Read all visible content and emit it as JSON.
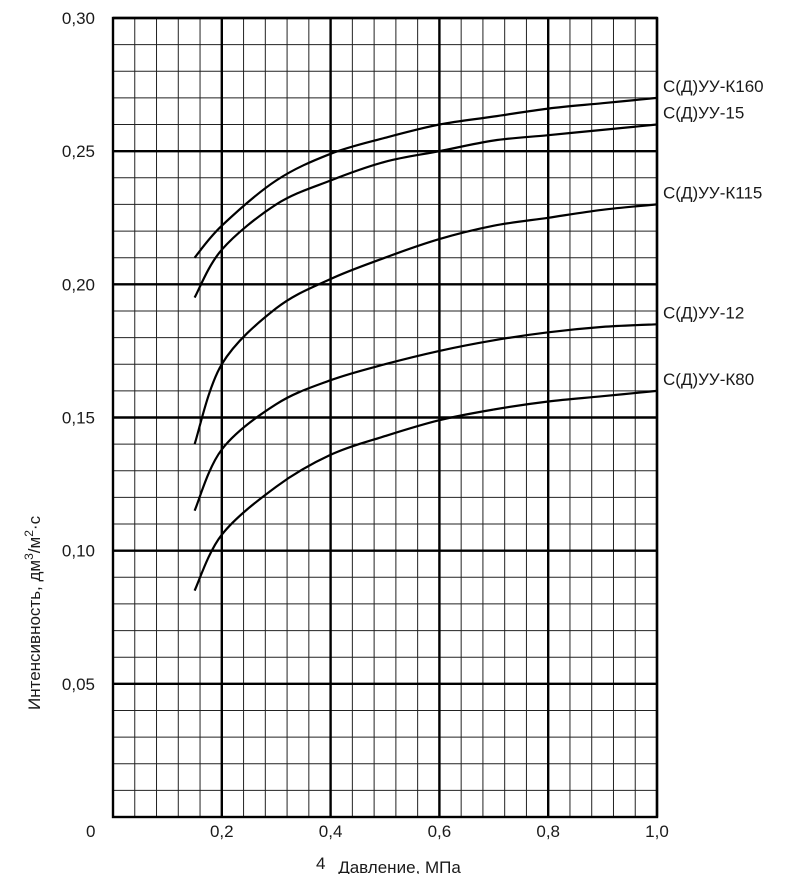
{
  "chart_data": {
    "type": "line",
    "xlabel": "Давление, МПа",
    "xlabel_prefix": "4",
    "ylabel_main": "Интенсивность, дм",
    "ylabel_sup1": "3",
    "ylabel_mid": "/м",
    "ylabel_sup2": "2",
    "ylabel_end": "·с",
    "origin_label": "0",
    "xlim": [
      0,
      1.0
    ],
    "ylim": [
      0,
      0.3
    ],
    "grid": true,
    "x_ticks": [
      {
        "value": 0.2,
        "label": "0,2"
      },
      {
        "value": 0.4,
        "label": "0,4"
      },
      {
        "value": 0.6,
        "label": "0,6"
      },
      {
        "value": 0.8,
        "label": "0,8"
      },
      {
        "value": 1.0,
        "label": "1,0"
      }
    ],
    "y_ticks": [
      {
        "value": 0.05,
        "label": "0,05"
      },
      {
        "value": 0.1,
        "label": "0,10"
      },
      {
        "value": 0.15,
        "label": "0,15"
      },
      {
        "value": 0.2,
        "label": "0,20"
      },
      {
        "value": 0.25,
        "label": "0,25"
      },
      {
        "value": 0.3,
        "label": "0,30"
      }
    ],
    "series": [
      {
        "name": "С(Д)УУ-К160",
        "x": [
          0.15,
          0.2,
          0.3,
          0.4,
          0.5,
          0.6,
          0.7,
          0.8,
          0.9,
          1.0
        ],
        "y": [
          0.21,
          0.222,
          0.239,
          0.249,
          0.255,
          0.26,
          0.263,
          0.266,
          0.268,
          0.27
        ]
      },
      {
        "name": "С(Д)УУ-15",
        "x": [
          0.15,
          0.2,
          0.3,
          0.4,
          0.5,
          0.6,
          0.7,
          0.8,
          0.9,
          1.0
        ],
        "y": [
          0.195,
          0.213,
          0.23,
          0.239,
          0.246,
          0.25,
          0.254,
          0.256,
          0.258,
          0.26
        ]
      },
      {
        "name": "С(Д)УУ-К115",
        "x": [
          0.15,
          0.2,
          0.3,
          0.4,
          0.5,
          0.6,
          0.7,
          0.8,
          0.9,
          1.0
        ],
        "y": [
          0.14,
          0.17,
          0.191,
          0.202,
          0.21,
          0.217,
          0.222,
          0.225,
          0.228,
          0.23
        ]
      },
      {
        "name": "С(Д)УУ-12",
        "x": [
          0.15,
          0.2,
          0.3,
          0.4,
          0.5,
          0.6,
          0.7,
          0.8,
          0.9,
          1.0
        ],
        "y": [
          0.115,
          0.138,
          0.155,
          0.164,
          0.17,
          0.175,
          0.179,
          0.182,
          0.184,
          0.185
        ]
      },
      {
        "name": "С(Д)УУ-К80",
        "x": [
          0.15,
          0.2,
          0.3,
          0.4,
          0.5,
          0.6,
          0.7,
          0.8,
          0.9,
          1.0
        ],
        "y": [
          0.085,
          0.106,
          0.124,
          0.136,
          0.143,
          0.149,
          0.153,
          0.156,
          0.158,
          0.16
        ]
      }
    ]
  }
}
